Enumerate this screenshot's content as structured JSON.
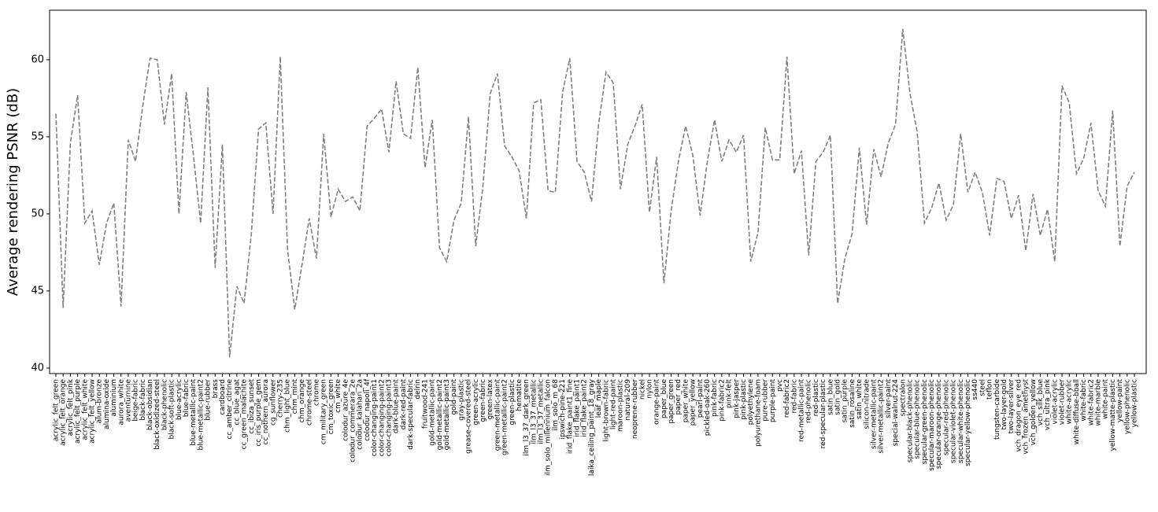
{
  "chart_data": {
    "type": "line",
    "y_label": "Average rendering PSNR (dB)",
    "categories": [
      "acrylic_felt_green",
      "acrylic_felt_orange",
      "acrylic_felt_pink",
      "acrylic_felt_purple",
      "acrylic_felt_white",
      "acrylic_felt_yellow",
      "alum-bronze",
      "alumina-oxide",
      "aluminium",
      "aurora_white",
      "aventurnine",
      "beige-fabric",
      "black-fabric",
      "black-obsidian",
      "black-oxidized-steel",
      "black-phenolic",
      "black-soft-plastic",
      "blue-acrylic",
      "blue-fabric",
      "blue-metallic-paint",
      "blue-metallic-paint2",
      "blue-rubber",
      "brass",
      "cardboard",
      "cc_amber_citrine",
      "cc_blue_agat",
      "cc_green_malachite",
      "cc_ibiza_sunset",
      "cc_iris_purple_gem",
      "cc_nothern_aurora",
      "cg_sunflower",
      "cherry-235",
      "chm_light_blue",
      "chm_mint",
      "chm_orange",
      "chrome-steel",
      "chrome",
      "cm_military_green",
      "cm_toxic_green",
      "cm_white",
      "colodur_azure_4e",
      "colodur_commerara_2e",
      "colodur_kalahari_2a",
      "colodur_napoli_4f",
      "color-changing-paint1",
      "color-changing-paint2",
      "color-changing-paint3",
      "dark-blue-paint",
      "dark-red-paint",
      "dark-specular-fabric",
      "delrin",
      "fruitwood-241",
      "gold-metallic-paint",
      "gold-metallic-paint2",
      "gold-metallic-paint3",
      "gold-paint",
      "gray-plastic",
      "grease-covered-steel",
      "green-acrylic",
      "green-fabric",
      "green-latex",
      "green-metallic-paint",
      "green-metallic-paint2",
      "green-plastic",
      "hematite",
      "ilm_l3_37_dark_green",
      "ilm_l3_37_metallic",
      "ilm_l3_37_metallic",
      "ilm_solo_millennium_falcon",
      "ilm_solo_m_68",
      "ipswich-pine-221",
      "irid_flake_paint1_fine",
      "irid_flake_paint1",
      "irid_flake_paint2",
      "laika_ceiling_paint_18_gray",
      "leaf_maple",
      "light-brown-fabric",
      "light-red-paint",
      "maroon-plastic",
      "natural-209",
      "neoprene-rubber",
      "nickel",
      "nylon",
      "orange-paint",
      "paper_blue",
      "paper_green",
      "paper_red",
      "paper_white",
      "paper_yellow",
      "pearl-paint",
      "pickled-oak-260",
      "pink-fabric",
      "pink-fabric2",
      "pink-felt",
      "pink-jasper",
      "pink-plastic",
      "polyethylene",
      "polyurethane-foam",
      "pure-rubber",
      "purple-paint",
      "pvc",
      "red-fabric2",
      "red-fabric",
      "red-metallic-paint",
      "red-phenolic",
      "red-plastic",
      "red-specular-plastic",
      "satin_blue",
      "satin_gold",
      "satin_purple",
      "satin_rosaline",
      "satin_white",
      "silicon-nitrade",
      "silver-metallic-paint",
      "silver-metallic-paint2",
      "silver-paint",
      "special-walnut-224",
      "spectralon",
      "specular-black-phenolic",
      "specular-blue-phenolic",
      "specular-green-phenolic",
      "specular-maroon-phenolic",
      "specular-orange-phenolic",
      "specular-red-phenolic",
      "specular-violet-phenolic",
      "specular-white-phenolic",
      "specular-yellow-phenolic",
      "ss440",
      "steel",
      "teflon",
      "tungsten-carbide",
      "two-layer-gold",
      "two-layer-silver",
      "vch_dragon_eye_red",
      "vch_frozen_amethyst",
      "vch_golden_yellow",
      "vch_silk_blue",
      "vch_ultra_pink",
      "violet-acrylic",
      "violet-rubber",
      "white-acrylic",
      "white-diffuse-bball",
      "white-fabric",
      "white-fabric2",
      "white-marble",
      "white-paint",
      "yellow-matte-plastic",
      "yellow-paint",
      "yellow-phenolic",
      "yellow-plastic"
    ],
    "values": [
      56.5,
      43.9,
      54.6,
      57.7,
      49.4,
      50.2,
      46.7,
      49.4,
      50.7,
      44.0,
      54.8,
      53.4,
      57.0,
      60.1,
      60.0,
      55.8,
      59.1,
      50.0,
      57.9,
      53.8,
      49.4,
      58.2,
      46.5,
      54.5,
      40.7,
      45.3,
      44.2,
      48.7,
      55.5,
      55.9,
      50.0,
      60.2,
      47.7,
      43.8,
      46.7,
      49.7,
      47.1,
      55.2,
      49.8,
      51.6,
      50.8,
      51.1,
      50.2,
      55.7,
      56.2,
      56.8,
      54.0,
      58.6,
      55.2,
      54.9,
      59.5,
      53.0,
      56.1,
      47.8,
      46.9,
      49.6,
      50.7,
      56.3,
      47.9,
      51.8,
      57.8,
      59.1,
      54.4,
      53.7,
      52.8,
      49.7,
      57.2,
      57.4,
      51.5,
      51.4,
      57.9,
      60.1,
      53.4,
      52.7,
      50.8,
      55.9,
      59.2,
      58.5,
      51.6,
      54.5,
      55.7,
      57.1,
      50.1,
      53.7,
      45.5,
      50.2,
      53.4,
      55.7,
      53.8,
      49.9,
      53.4,
      56.1,
      53.4,
      54.8,
      54.0,
      55.1,
      46.9,
      48.8,
      55.6,
      53.5,
      53.5,
      60.2,
      52.6,
      54.1,
      47.3,
      53.4,
      54.0,
      55.1,
      44.2,
      47.1,
      48.7,
      54.3,
      49.3,
      54.2,
      52.4,
      54.6,
      55.8,
      62.0,
      57.8,
      55.3,
      49.4,
      50.4,
      52.0,
      49.6,
      50.6,
      55.2,
      51.4,
      52.7,
      51.4,
      48.6,
      52.3,
      52.1,
      49.7,
      51.2,
      47.6,
      51.3,
      48.6,
      50.3,
      46.9,
      58.3,
      57.2,
      52.6,
      53.6,
      55.9,
      51.5,
      50.5,
      56.7,
      47.9,
      51.8,
      52.7
    ],
    "color": "#808080",
    "dashed": true,
    "ylim": [
      39.64,
      63.21
    ],
    "yticks": [
      40,
      45,
      50,
      55,
      60
    ]
  }
}
